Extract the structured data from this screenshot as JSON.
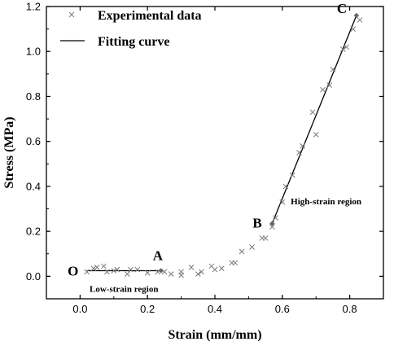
{
  "chart_data": {
    "type": "scatter",
    "xlabel": "Strain (mm/mm)",
    "ylabel": "Stress (MPa)",
    "xlim": [
      -0.1,
      0.9
    ],
    "ylim": [
      -0.1,
      1.2
    ],
    "x_ticks": [
      "0.0",
      "0.2",
      "0.4",
      "0.6",
      "0.8"
    ],
    "x_tick_values": [
      0.0,
      0.2,
      0.4,
      0.6,
      0.8
    ],
    "y_ticks": [
      "0.0",
      "0.2",
      "0.4",
      "0.6",
      "0.8",
      "1.0",
      "1.2"
    ],
    "y_tick_values": [
      0.0,
      0.2,
      0.4,
      0.6,
      0.8,
      1.0,
      1.2
    ],
    "legend_position": "top-left",
    "colors": {
      "experimental": "#7a7a7a",
      "fit": "#000000",
      "marker": "#666666"
    },
    "series": [
      {
        "name": "Experimental data",
        "marker": "x",
        "x": [
          0.02,
          0.05,
          0.08,
          0.11,
          0.14,
          0.17,
          0.2,
          0.23,
          0.27,
          0.3,
          0.33,
          0.36,
          0.39,
          0.42,
          0.45,
          0.48,
          0.51,
          0.54,
          0.57,
          0.6,
          0.63,
          0.66,
          0.69,
          0.72,
          0.75,
          0.78,
          0.81,
          0.83,
          0.04,
          0.07,
          0.1,
          0.15,
          0.25,
          0.3,
          0.35,
          0.4,
          0.46,
          0.55,
          0.58,
          0.61,
          0.65,
          0.7,
          0.74,
          0.79
        ],
        "y": [
          0.02,
          0.04,
          0.02,
          0.03,
          0.01,
          0.03,
          0.015,
          0.02,
          0.01,
          0.005,
          0.04,
          0.02,
          0.045,
          0.035,
          0.06,
          0.11,
          0.13,
          0.17,
          0.22,
          0.33,
          0.45,
          0.58,
          0.73,
          0.83,
          0.92,
          1.01,
          1.1,
          1.14,
          0.035,
          0.045,
          0.025,
          0.03,
          0.02,
          0.02,
          0.01,
          0.03,
          0.06,
          0.17,
          0.26,
          0.4,
          0.55,
          0.63,
          0.85,
          1.02
        ]
      },
      {
        "name": "Fitting curve",
        "type": "line",
        "segments": [
          {
            "x": [
              0.02,
              0.24
            ],
            "y": [
              0.025,
              0.025
            ]
          },
          {
            "x": [
              0.57,
              0.82
            ],
            "y": [
              0.235,
              1.16
            ]
          }
        ]
      }
    ],
    "annotations": [
      {
        "text": "O",
        "x": 0.0,
        "y": 0.025
      },
      {
        "text": "A",
        "x": 0.24,
        "y": 0.025
      },
      {
        "text": "B",
        "x": 0.57,
        "y": 0.235
      },
      {
        "text": "C",
        "x": 0.82,
        "y": 1.16
      },
      {
        "text": "Low-strain region",
        "x": 0.13,
        "y": -0.07
      },
      {
        "text": "High-strain region",
        "x": 0.73,
        "y": 0.32
      }
    ]
  }
}
